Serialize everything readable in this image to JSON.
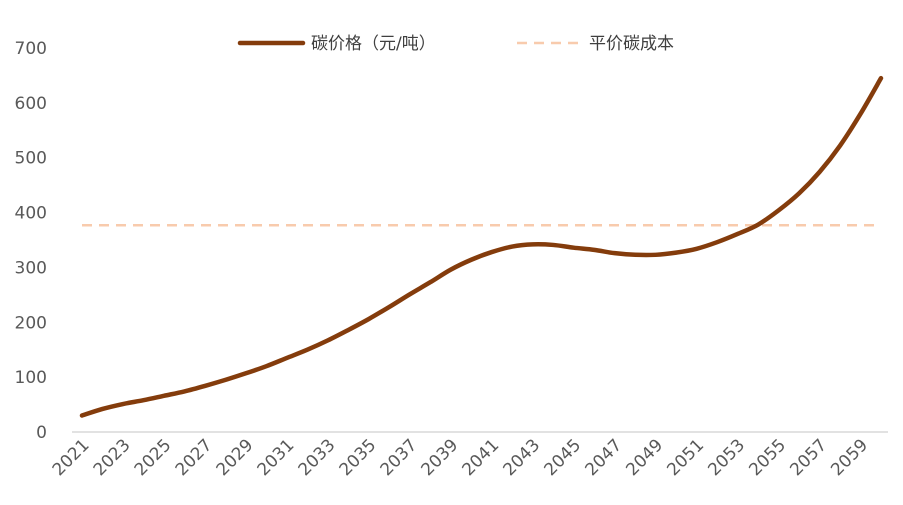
{
  "chart_data": {
    "type": "line",
    "title": "",
    "xlabel": "",
    "ylabel": "",
    "ylim": [
      0,
      700
    ],
    "yticks": [
      0,
      100,
      200,
      300,
      400,
      500,
      600,
      700
    ],
    "xlim": [
      2021,
      2060
    ],
    "xticks": [
      "2021",
      "2023",
      "2025",
      "2027",
      "2029",
      "2031",
      "2033",
      "2035",
      "2037",
      "2039",
      "2041",
      "2043",
      "2045",
      "2047",
      "2049",
      "2051",
      "2053",
      "2055",
      "2057",
      "2059"
    ],
    "grid": false,
    "legend_position": "top",
    "series": [
      {
        "name": "碳价格（元/吨）",
        "style": "solid",
        "color": "#843C0C",
        "x": [
          2021,
          2022,
          2023,
          2024,
          2025,
          2026,
          2027,
          2028,
          2029,
          2030,
          2031,
          2032,
          2033,
          2034,
          2035,
          2036,
          2037,
          2038,
          2039,
          2040,
          2041,
          2042,
          2043,
          2044,
          2045,
          2046,
          2047,
          2048,
          2049,
          2050,
          2051,
          2052,
          2053,
          2054,
          2055,
          2056,
          2057,
          2058,
          2059,
          2060
        ],
        "values": [
          30,
          42,
          51,
          58,
          66,
          74,
          84,
          95,
          107,
          120,
          135,
          150,
          167,
          186,
          206,
          228,
          251,
          273,
          296,
          314,
          328,
          338,
          342,
          341,
          336,
          332,
          326,
          323,
          323,
          327,
          334,
          346,
          361,
          378,
          404,
          435,
          474,
          522,
          580,
          645
        ]
      },
      {
        "name": "平价碳成本",
        "style": "dashed",
        "color": "#F8CBAD",
        "x": [
          2021,
          2060
        ],
        "values": [
          377,
          377
        ]
      }
    ]
  }
}
